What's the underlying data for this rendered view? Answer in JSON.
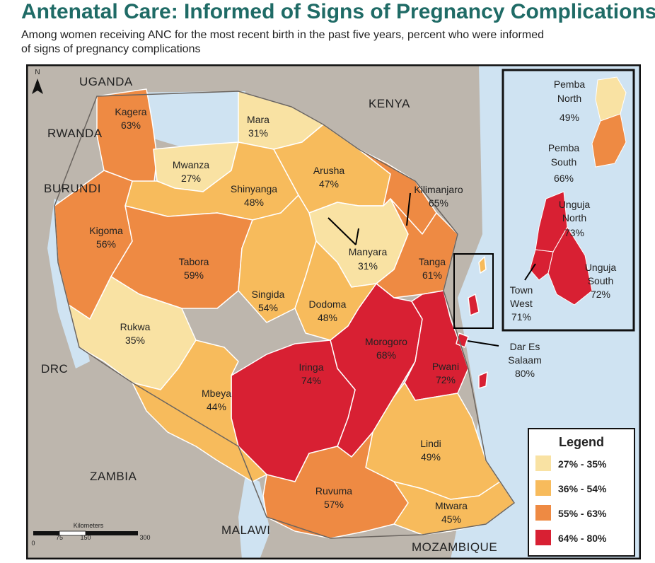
{
  "header": {
    "title": "Antenatal Care: Informed of Signs of Pregnancy Complications",
    "subtitle_line1": "Among women receiving ANC for the most recent birth in the past five years, percent who were informed",
    "subtitle_line2": "of signs of pregnancy complications"
  },
  "colors": {
    "water": "#cfe3f2",
    "neighbor": "#bdb6ad",
    "border": "#6b6560",
    "class1": "#f9e2a3",
    "class2": "#f7bb5c",
    "class3": "#ee8a43",
    "class4": "#d82033"
  },
  "countries": {
    "uganda": "UGANDA",
    "kenya": "KENYA",
    "rwanda": "RWANDA",
    "burundi": "BURUNDI",
    "drc": "DRC",
    "zambia": "ZAMBIA",
    "malawi": "MALAWI",
    "mozambique": "MOZAMBIQUE"
  },
  "regions": {
    "kagera": {
      "name": "Kagera",
      "value": "63%"
    },
    "mara": {
      "name": "Mara",
      "value": "31%"
    },
    "mwanza": {
      "name": "Mwanza",
      "value": "27%"
    },
    "shinyanga": {
      "name": "Shinyanga",
      "value": "48%"
    },
    "arusha": {
      "name": "Arusha",
      "value": "47%"
    },
    "kilimanjaro": {
      "name": "Kilimanjaro",
      "value": "65%"
    },
    "kigoma": {
      "name": "Kigoma",
      "value": "56%"
    },
    "tabora": {
      "name": "Tabora",
      "value": "59%"
    },
    "manyara": {
      "name": "Manyara",
      "value": "31%"
    },
    "tanga": {
      "name": "Tanga",
      "value": "61%"
    },
    "singida": {
      "name": "Singida",
      "value": "54%"
    },
    "dodoma": {
      "name": "Dodoma",
      "value": "48%"
    },
    "rukwa": {
      "name": "Rukwa",
      "value": "35%"
    },
    "morogoro": {
      "name": "Morogoro",
      "value": "68%"
    },
    "pwani": {
      "name": "Pwani",
      "value": "72%"
    },
    "dar": {
      "name1": "Dar Es",
      "name2": "Salaam",
      "value": "80%"
    },
    "iringa": {
      "name": "Iringa",
      "value": "74%"
    },
    "mbeya": {
      "name": "Mbeya",
      "value": "44%"
    },
    "lindi": {
      "name": "Lindi",
      "value": "49%"
    },
    "ruvuma": {
      "name": "Ruvuma",
      "value": "57%"
    },
    "mtwara": {
      "name": "Mtwara",
      "value": "45%"
    }
  },
  "inset": {
    "pemba_north": {
      "name1": "Pemba",
      "name2": "North",
      "value": "49%"
    },
    "pemba_south": {
      "name1": "Pemba",
      "name2": "South",
      "value": "66%"
    },
    "unguja_north": {
      "name1": "Unguja",
      "name2": "North",
      "value": "73%"
    },
    "unguja_south": {
      "name1": "Unguja",
      "name2": "South",
      "value": "72%"
    },
    "town_west": {
      "name1": "Town",
      "name2": "West",
      "value": "71%"
    }
  },
  "legend": {
    "title": "Legend",
    "items": [
      {
        "label": "27% - 35%",
        "color": "#f9e2a3"
      },
      {
        "label": "36% - 54%",
        "color": "#f7bb5c"
      },
      {
        "label": "55% - 63%",
        "color": "#ee8a43"
      },
      {
        "label": "64% - 80%",
        "color": "#d82033"
      }
    ]
  },
  "scale": {
    "title": "Kilometers",
    "t0": "0",
    "t1": "75",
    "t2": "150",
    "t3": "300"
  },
  "north": "N"
}
